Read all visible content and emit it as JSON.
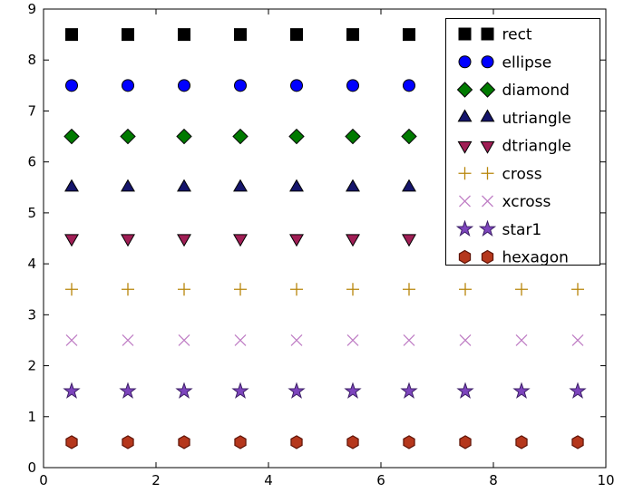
{
  "chart_data": {
    "type": "scatter",
    "title": "",
    "xlabel": "",
    "ylabel": "",
    "xlim": [
      0,
      10
    ],
    "ylim": [
      0,
      9
    ],
    "xticks": [
      0,
      2,
      4,
      6,
      8,
      10
    ],
    "yticks": [
      0,
      1,
      2,
      3,
      4,
      5,
      6,
      7,
      8,
      9
    ],
    "grid": false,
    "x": [
      0.5,
      1.5,
      2.5,
      3.5,
      4.5,
      5.5,
      6.5,
      7.5,
      8.5,
      9.5
    ],
    "legend": {
      "position": "top-right",
      "numpoints": 2
    },
    "series": [
      {
        "name": "rect",
        "marker": "square",
        "y": 8.5,
        "color": "#000000",
        "edge": "#000000"
      },
      {
        "name": "ellipse",
        "marker": "circle",
        "y": 7.5,
        "color": "#0000ff",
        "edge": "#000000"
      },
      {
        "name": "diamond",
        "marker": "diamond",
        "y": 6.5,
        "color": "#007a00",
        "edge": "#000000"
      },
      {
        "name": "utriangle",
        "marker": "triangle-up",
        "y": 5.5,
        "color": "#15156b",
        "edge": "#000000"
      },
      {
        "name": "dtriangle",
        "marker": "triangle-down",
        "y": 4.5,
        "color": "#a01e55",
        "edge": "#000000"
      },
      {
        "name": "cross",
        "marker": "plus",
        "y": 3.5,
        "color": "#b8860b",
        "edge": "#b8860b"
      },
      {
        "name": "xcross",
        "marker": "x",
        "y": 2.5,
        "color": "#c07fc5",
        "edge": "#c07fc5"
      },
      {
        "name": "star1",
        "marker": "star",
        "y": 1.5,
        "color": "#7d45bd",
        "edge": "#3c1f66"
      },
      {
        "name": "hexagon",
        "marker": "hexagon",
        "y": 0.5,
        "color": "#b5371c",
        "edge": "#5e1408"
      }
    ]
  }
}
